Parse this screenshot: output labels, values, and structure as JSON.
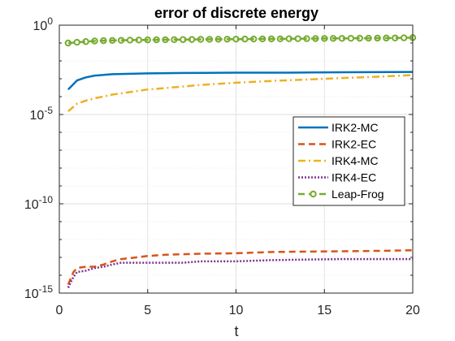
{
  "chart_data": {
    "type": "line",
    "title": "error of discrete energy",
    "xlabel": "t",
    "ylabel": "",
    "xlim": [
      0,
      20
    ],
    "ylim": [
      1e-15,
      1
    ],
    "yscale": "log",
    "xticks": [
      0,
      5,
      10,
      15,
      20
    ],
    "xtick_labels": [
      "0",
      "5",
      "10",
      "15",
      "20"
    ],
    "yticks": [
      1e-15,
      1e-10,
      1e-05,
      1
    ],
    "ytick_labels": [
      {
        "base": "10",
        "exp": "-15"
      },
      {
        "base": "10",
        "exp": "-10"
      },
      {
        "base": "10",
        "exp": "-5"
      },
      {
        "base": "10",
        "exp": "0"
      }
    ],
    "grid": true,
    "legend_position": "right",
    "series": [
      {
        "name": "IRK2-MC",
        "color": "#0072BD",
        "style": "solid",
        "marker": "none",
        "x": [
          0.5,
          1,
          1.5,
          2,
          3,
          4,
          5,
          7,
          10,
          13,
          16,
          20
        ],
        "y": [
          0.00025,
          0.0008,
          0.0012,
          0.0015,
          0.0018,
          0.0019,
          0.002,
          0.0021,
          0.0022,
          0.0022,
          0.0023,
          0.0024
        ]
      },
      {
        "name": "IRK2-EC",
        "color": "#D95319",
        "style": "dashed",
        "marker": "none",
        "x": [
          0.5,
          0.8,
          1,
          1.5,
          2,
          2.5,
          3,
          3.5,
          4,
          5,
          6,
          8,
          10,
          12,
          14,
          16,
          18,
          20
        ],
        "y": [
          3e-15,
          1.5e-14,
          2.5e-14,
          3e-14,
          3e-14,
          4e-14,
          6e-14,
          8e-14,
          9e-14,
          1.2e-13,
          1.4e-13,
          1.6e-13,
          1.7e-13,
          2e-13,
          2.1e-13,
          2.2e-13,
          2.3e-13,
          2.5e-13
        ]
      },
      {
        "name": "IRK4-MC",
        "color": "#EDB120",
        "style": "dashdot",
        "marker": "none",
        "x": [
          0.5,
          1,
          1.5,
          2,
          3,
          4,
          5,
          6,
          8,
          10,
          12,
          14,
          16,
          18,
          20
        ],
        "y": [
          1.5e-05,
          4e-05,
          6e-05,
          8e-05,
          0.00013,
          0.00018,
          0.00025,
          0.0003,
          0.00045,
          0.0006,
          0.00075,
          0.0009,
          0.0011,
          0.0013,
          0.0016
        ]
      },
      {
        "name": "IRK4-EC",
        "color": "#7E2F8E",
        "style": "dotted",
        "marker": "none",
        "x": [
          0.5,
          0.8,
          1,
          1.5,
          2,
          2.5,
          3,
          3.5,
          4,
          5,
          6,
          7,
          8,
          10,
          12,
          14,
          16,
          18,
          20
        ],
        "y": [
          2e-15,
          8e-15,
          1.5e-14,
          1.8e-14,
          2.5e-14,
          3e-14,
          4e-14,
          5e-14,
          5e-14,
          5e-14,
          5e-14,
          5e-14,
          6e-14,
          6e-14,
          7e-14,
          7.5e-14,
          8e-14,
          8e-14,
          8e-14
        ]
      },
      {
        "name": "Leap-Frog",
        "color": "#77AC30",
        "style": "dashed",
        "marker": "circle",
        "x": [
          0.5,
          1,
          1.5,
          2,
          2.5,
          3,
          3.5,
          4,
          4.5,
          5,
          5.5,
          6,
          6.5,
          7,
          7.5,
          8,
          8.5,
          9,
          9.5,
          10,
          10.5,
          11,
          11.5,
          12,
          12.5,
          13,
          13.5,
          14,
          14.5,
          15,
          15.5,
          16,
          16.5,
          17,
          17.5,
          18,
          18.5,
          19,
          19.5,
          20
        ],
        "y": [
          0.1,
          0.11,
          0.12,
          0.13,
          0.135,
          0.14,
          0.142,
          0.145,
          0.147,
          0.15,
          0.152,
          0.153,
          0.155,
          0.156,
          0.158,
          0.16,
          0.161,
          0.163,
          0.164,
          0.165,
          0.167,
          0.168,
          0.17,
          0.171,
          0.172,
          0.174,
          0.175,
          0.176,
          0.178,
          0.18,
          0.181,
          0.182,
          0.184,
          0.185,
          0.186,
          0.188,
          0.19,
          0.192,
          0.195,
          0.2
        ]
      }
    ]
  }
}
